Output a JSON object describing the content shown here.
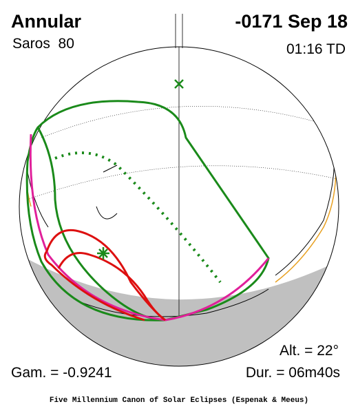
{
  "header": {
    "eclipse_type": "Annular",
    "date": "-0171 Sep 18",
    "saros": "Saros  80",
    "time": "01:16 TD"
  },
  "footer": {
    "altitude": "Alt. = 22°",
    "gamma": "Gam. = -0.9241",
    "duration": "Dur. = 06m40s",
    "credit": "Five Millennium Canon of Solar Eclipses (Espenak & Meeus)"
  }
}
